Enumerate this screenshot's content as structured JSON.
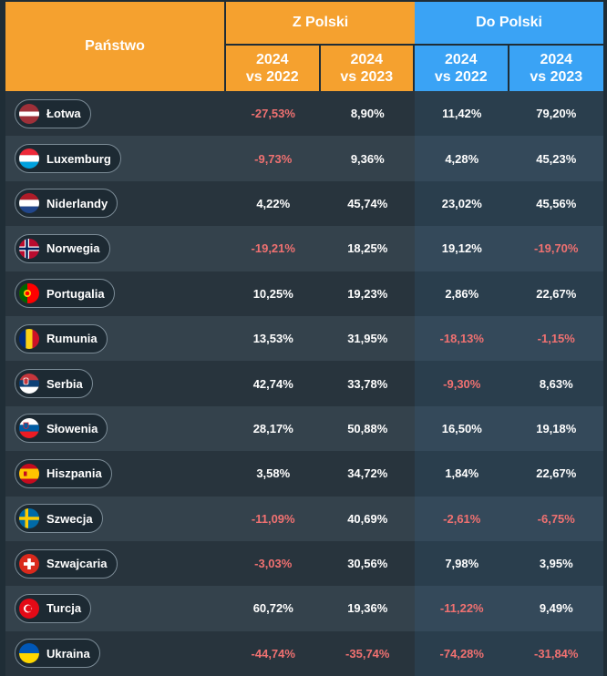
{
  "header": {
    "country": "Państwo",
    "z_polski": "Z Polski",
    "do_polski": "Do Polski",
    "sub": [
      {
        "line1": "2024",
        "line2": "vs 2022"
      },
      {
        "line1": "2024",
        "line2": "vs 2023"
      },
      {
        "line1": "2024",
        "line2": "vs 2022"
      },
      {
        "line1": "2024",
        "line2": "vs 2023"
      }
    ]
  },
  "colors": {
    "orange": "#f5a12f",
    "blue": "#3aa3f5",
    "negative": "#f07171",
    "background": "#1f2d36"
  },
  "rows": [
    {
      "country": "Łotwa",
      "flag": "latvia-flag",
      "values": [
        "-27,53%",
        "8,90%",
        "11,42%",
        "79,20%"
      ]
    },
    {
      "country": "Luxemburg",
      "flag": "luxembourg-flag",
      "values": [
        "-9,73%",
        "9,36%",
        "4,28%",
        "45,23%"
      ]
    },
    {
      "country": "Niderlandy",
      "flag": "netherlands-flag",
      "values": [
        "4,22%",
        "45,74%",
        "23,02%",
        "45,56%"
      ]
    },
    {
      "country": "Norwegia",
      "flag": "norway-flag",
      "values": [
        "-19,21%",
        "18,25%",
        "19,12%",
        "-19,70%"
      ]
    },
    {
      "country": "Portugalia",
      "flag": "portugal-flag",
      "values": [
        "10,25%",
        "19,23%",
        "2,86%",
        "22,67%"
      ]
    },
    {
      "country": "Rumunia",
      "flag": "romania-flag",
      "values": [
        "13,53%",
        "31,95%",
        "-18,13%",
        "-1,15%"
      ]
    },
    {
      "country": "Serbia",
      "flag": "serbia-flag",
      "values": [
        "42,74%",
        "33,78%",
        "-9,30%",
        "8,63%"
      ]
    },
    {
      "country": "Słowenia",
      "flag": "slovenia-flag",
      "values": [
        "28,17%",
        "50,88%",
        "16,50%",
        "19,18%"
      ]
    },
    {
      "country": "Hiszpania",
      "flag": "spain-flag",
      "values": [
        "3,58%",
        "34,72%",
        "1,84%",
        "22,67%"
      ]
    },
    {
      "country": "Szwecja",
      "flag": "sweden-flag",
      "values": [
        "-11,09%",
        "40,69%",
        "-2,61%",
        "-6,75%"
      ]
    },
    {
      "country": "Szwajcaria",
      "flag": "switzerland-flag",
      "values": [
        "-3,03%",
        "30,56%",
        "7,98%",
        "3,95%"
      ]
    },
    {
      "country": "Turcja",
      "flag": "turkey-flag",
      "values": [
        "60,72%",
        "19,36%",
        "-11,22%",
        "9,49%"
      ]
    },
    {
      "country": "Ukraina",
      "flag": "ukraine-flag",
      "values": [
        "-44,74%",
        "-35,74%",
        "-74,28%",
        "-31,84%"
      ]
    }
  ]
}
